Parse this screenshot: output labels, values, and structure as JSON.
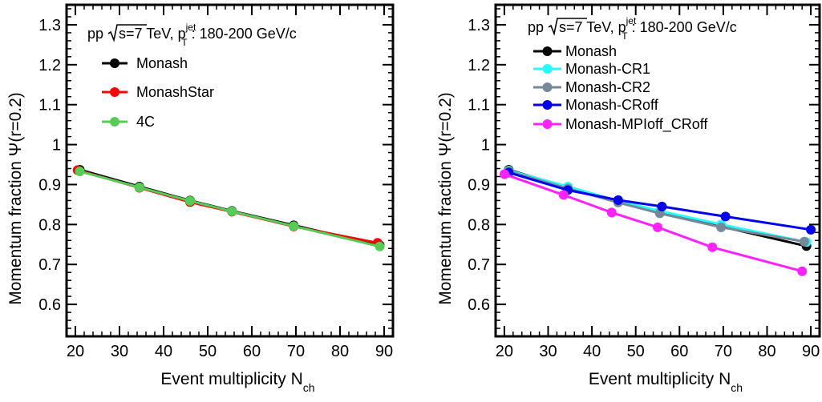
{
  "chart_data": [
    {
      "type": "line",
      "annotation": {
        "pre": "pp ",
        "mid": "s=7 TeV, p",
        "sup": "jet",
        "sub": "T",
        "post": ": 180-200 GeV/c"
      },
      "xlabel": {
        "main": "Event multiplicity N",
        "sub": "ch"
      },
      "ylabel": "Momentum fraction Ψ(r=0.2)",
      "xlim": [
        18,
        92
      ],
      "ylim": [
        0.52,
        1.35
      ],
      "xticks": [
        20,
        30,
        40,
        50,
        60,
        70,
        80,
        90
      ],
      "yticks": [
        0.6,
        0.7,
        0.8,
        0.9,
        1,
        1.1,
        1.2,
        1.3
      ],
      "xtick_labels": [
        "20",
        "30",
        "40",
        "50",
        "60",
        "70",
        "80",
        "90"
      ],
      "ytick_labels": [
        "0.6",
        "0.7",
        "0.8",
        "0.9",
        "1",
        "1.1",
        "1.2",
        "1.3"
      ],
      "legend_placement": "top-left",
      "series": [
        {
          "name": "Monash",
          "color": "#000000",
          "x": [
            21,
            34.5,
            46,
            55.5,
            69.5,
            89
          ],
          "y": [
            0.937,
            0.895,
            0.86,
            0.834,
            0.798,
            0.748
          ]
        },
        {
          "name": "MonashStar",
          "color": "#ff0000",
          "x": [
            20.5,
            34.5,
            46,
            55.5,
            69.5,
            88.5
          ],
          "y": [
            0.936,
            0.892,
            0.856,
            0.832,
            0.795,
            0.754
          ]
        },
        {
          "name": "4C",
          "color": "#55cc55",
          "x": [
            21,
            34.5,
            46,
            55.5,
            69.5,
            89
          ],
          "y": [
            0.933,
            0.893,
            0.859,
            0.833,
            0.796,
            0.745
          ]
        }
      ]
    },
    {
      "type": "line",
      "annotation": {
        "pre": "pp ",
        "mid": "s=7 TeV, p",
        "sup": "jet",
        "sub": "T",
        "post": ": 180-200 GeV/c"
      },
      "xlabel": {
        "main": "Event multiplicity N",
        "sub": "ch"
      },
      "ylabel": "Momentum fraction Ψ(r=0.2)",
      "xlim": [
        18,
        92
      ],
      "ylim": [
        0.52,
        1.35
      ],
      "xticks": [
        20,
        30,
        40,
        50,
        60,
        70,
        80,
        90
      ],
      "yticks": [
        0.6,
        0.7,
        0.8,
        0.9,
        1,
        1.1,
        1.2,
        1.3
      ],
      "xtick_labels": [
        "20",
        "30",
        "40",
        "50",
        "60",
        "70",
        "80",
        "90"
      ],
      "ytick_labels": [
        "0.6",
        "0.7",
        "0.8",
        "0.9",
        "1",
        "1.1",
        "1.2",
        "1.3"
      ],
      "legend_placement": "top-left",
      "series": [
        {
          "name": "Monash",
          "color": "#000000",
          "x": [
            21,
            34.5,
            46,
            55.5,
            69.5,
            89
          ],
          "y": [
            0.937,
            0.892,
            0.858,
            0.832,
            0.795,
            0.746
          ]
        },
        {
          "name": "Monash-CR1",
          "color": "#22ffff",
          "x": [
            21,
            34.5,
            46,
            55.5,
            69.5,
            89
          ],
          "y": [
            0.935,
            0.895,
            0.859,
            0.834,
            0.8,
            0.756
          ]
        },
        {
          "name": "Monash-CR2",
          "color": "#778899",
          "x": [
            21,
            34.5,
            46,
            55.5,
            69.5,
            88.5
          ],
          "y": [
            0.933,
            0.89,
            0.855,
            0.828,
            0.793,
            0.757
          ]
        },
        {
          "name": "Monash-CRoff",
          "color": "#0000ee",
          "x": [
            21,
            34.5,
            46,
            56,
            70.5,
            90
          ],
          "y": [
            0.93,
            0.886,
            0.861,
            0.845,
            0.82,
            0.787
          ]
        },
        {
          "name": "Monash-MPIoff_CRoff",
          "color": "#ff22ff",
          "x": [
            20,
            33.5,
            44.5,
            55,
            67.5,
            88
          ],
          "y": [
            0.926,
            0.874,
            0.83,
            0.793,
            0.743,
            0.683
          ]
        }
      ]
    }
  ]
}
